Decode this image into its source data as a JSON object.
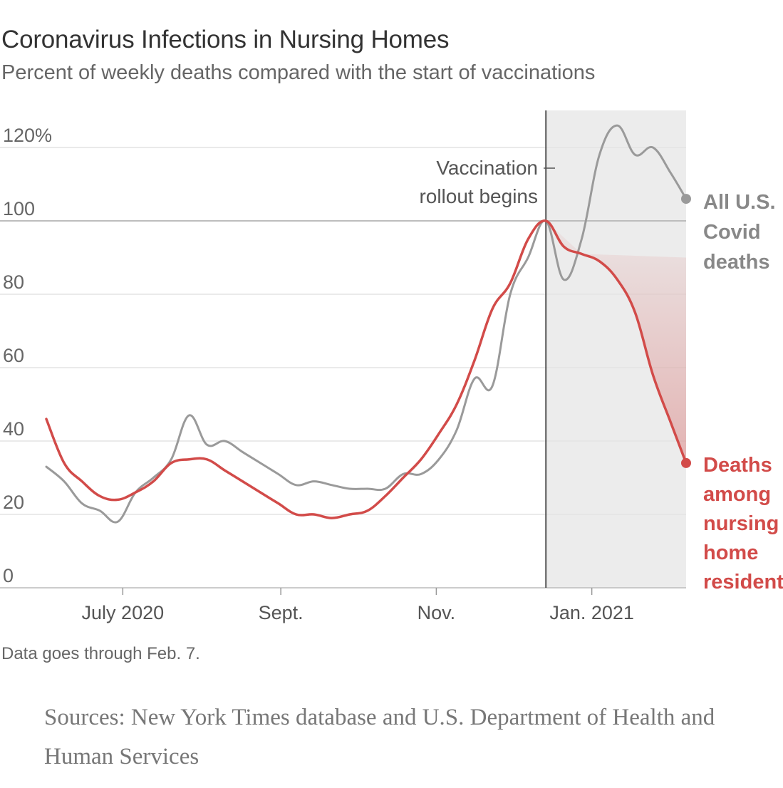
{
  "title": "Coronavirus Infections in Nursing Homes",
  "subtitle": "Percent of weekly deaths compared with the start of vaccinations",
  "note": "Data goes through Feb. 7.",
  "sources": "Sources: New York Times database and U.S. Department of Health and Human Services",
  "colors": {
    "all_us": "#9a9a9a",
    "nursing": "#d24b49",
    "shade": "#ececec",
    "grid": "#e3e3e3"
  },
  "chart_data": {
    "type": "line",
    "ylim": [
      0,
      130
    ],
    "yticks": [
      0,
      20,
      40,
      60,
      80,
      100
    ],
    "ytick_labels": [
      "0",
      "20",
      "40",
      "60",
      "80",
      "100"
    ],
    "ytick_top_label": "120%",
    "ytick_top_value": 120,
    "xlim": [
      "2020-06-01",
      "2021-02-10"
    ],
    "xticks": [
      {
        "date": "2020-07-01",
        "label": "July 2020"
      },
      {
        "date": "2020-09-01",
        "label": "Sept."
      },
      {
        "date": "2020-11-01",
        "label": "Nov."
      },
      {
        "date": "2021-01-01",
        "label": "Jan. 2021"
      }
    ],
    "shaded_start": "2020-12-14",
    "shaded_end": "2021-02-07",
    "annotation": {
      "date": "2020-12-14",
      "lines": [
        "Vaccination",
        "rollout begins"
      ]
    },
    "series": [
      {
        "name_lines": [
          "All U.S.",
          "Covid",
          "deaths"
        ],
        "color": "#9a9a9a",
        "points": [
          [
            "2020-06-01",
            33
          ],
          [
            "2020-06-08",
            29
          ],
          [
            "2020-06-15",
            23
          ],
          [
            "2020-06-22",
            21
          ],
          [
            "2020-06-29",
            18
          ],
          [
            "2020-07-06",
            26
          ],
          [
            "2020-07-13",
            30
          ],
          [
            "2020-07-20",
            35
          ],
          [
            "2020-07-27",
            47
          ],
          [
            "2020-08-03",
            39
          ],
          [
            "2020-08-10",
            40
          ],
          [
            "2020-08-17",
            37
          ],
          [
            "2020-08-24",
            34
          ],
          [
            "2020-08-31",
            31
          ],
          [
            "2020-09-07",
            28
          ],
          [
            "2020-09-14",
            29
          ],
          [
            "2020-09-21",
            28
          ],
          [
            "2020-09-28",
            27
          ],
          [
            "2020-10-05",
            27
          ],
          [
            "2020-10-12",
            27
          ],
          [
            "2020-10-19",
            31
          ],
          [
            "2020-10-26",
            31
          ],
          [
            "2020-11-02",
            35
          ],
          [
            "2020-11-09",
            43
          ],
          [
            "2020-11-16",
            57
          ],
          [
            "2020-11-23",
            55
          ],
          [
            "2020-11-30",
            80
          ],
          [
            "2020-12-07",
            90
          ],
          [
            "2020-12-14",
            100
          ],
          [
            "2020-12-21",
            84
          ],
          [
            "2020-12-28",
            95
          ],
          [
            "2021-01-04",
            118
          ],
          [
            "2021-01-11",
            126
          ],
          [
            "2021-01-18",
            118
          ],
          [
            "2021-01-25",
            120
          ],
          [
            "2021-02-01",
            113
          ],
          [
            "2021-02-07",
            106
          ]
        ]
      },
      {
        "name_lines": [
          "Deaths",
          "among",
          "nursing",
          "home",
          "residents"
        ],
        "color": "#d24b49",
        "points": [
          [
            "2020-06-01",
            46
          ],
          [
            "2020-06-08",
            34
          ],
          [
            "2020-06-15",
            29
          ],
          [
            "2020-06-22",
            25
          ],
          [
            "2020-06-29",
            24
          ],
          [
            "2020-07-06",
            26
          ],
          [
            "2020-07-13",
            29
          ],
          [
            "2020-07-20",
            34
          ],
          [
            "2020-07-27",
            35
          ],
          [
            "2020-08-03",
            35
          ],
          [
            "2020-08-10",
            32
          ],
          [
            "2020-08-17",
            29
          ],
          [
            "2020-08-24",
            26
          ],
          [
            "2020-08-31",
            23
          ],
          [
            "2020-09-07",
            20
          ],
          [
            "2020-09-14",
            20
          ],
          [
            "2020-09-21",
            19
          ],
          [
            "2020-09-28",
            20
          ],
          [
            "2020-10-05",
            21
          ],
          [
            "2020-10-12",
            25
          ],
          [
            "2020-10-19",
            30
          ],
          [
            "2020-10-26",
            35
          ],
          [
            "2020-11-02",
            42
          ],
          [
            "2020-11-09",
            50
          ],
          [
            "2020-11-16",
            62
          ],
          [
            "2020-11-23",
            76
          ],
          [
            "2020-11-30",
            83
          ],
          [
            "2020-12-07",
            95
          ],
          [
            "2020-12-14",
            100
          ],
          [
            "2020-12-21",
            93
          ],
          [
            "2020-12-28",
            91
          ],
          [
            "2021-01-04",
            89
          ],
          [
            "2021-01-11",
            84
          ],
          [
            "2021-01-18",
            75
          ],
          [
            "2021-01-25",
            58
          ],
          [
            "2021-02-01",
            45
          ],
          [
            "2021-02-07",
            34
          ]
        ]
      }
    ]
  }
}
